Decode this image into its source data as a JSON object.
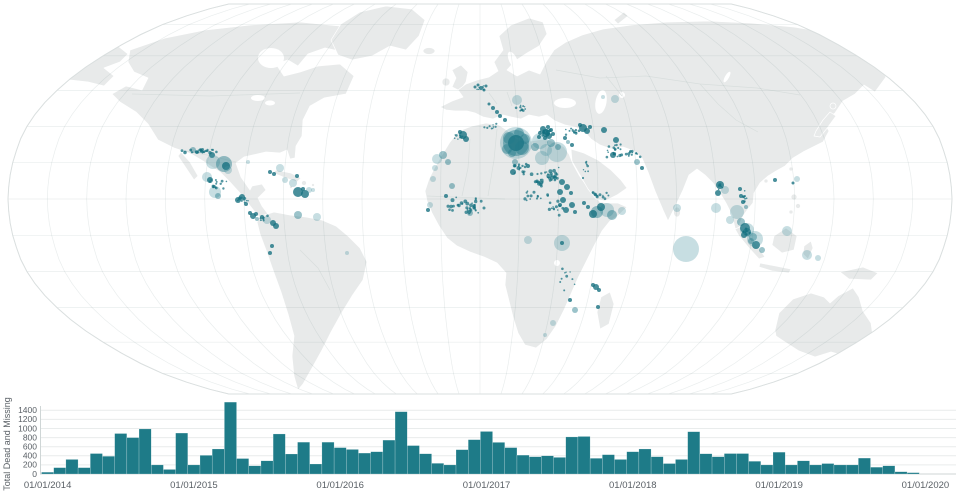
{
  "colors": {
    "background": "#ffffff",
    "land": "#e8eaea",
    "coast": "#ffffff",
    "country_border": "#d8dedd",
    "graticule": "rgba(120,144,144,0.16)",
    "map_outline": "#dadfdf",
    "bar": "#1e7b88",
    "grid_line": "#e9ecec",
    "axis_line": "#cfd6d6",
    "axis_text": "#5a6066",
    "bubble_dark": "#14707f",
    "bubble_mid": "#22798a",
    "bubble_light": "#44919f"
  },
  "map": {
    "bubble_classes": {
      "d": {
        "fill": "#14707f",
        "opacity": 0.78
      },
      "m": {
        "fill": "#22798a",
        "opacity": 0.45
      },
      "l": {
        "fill": "#44919f",
        "opacity": 0.3
      }
    },
    "bubbles": [
      [
        516,
        143,
        16,
        "l"
      ],
      [
        516,
        143,
        13,
        "m"
      ],
      [
        516,
        143,
        8,
        "d"
      ],
      [
        509,
        138,
        6,
        "m"
      ],
      [
        522,
        148,
        7,
        "m"
      ],
      [
        507,
        149,
        5,
        "m"
      ],
      [
        519,
        133,
        5,
        "m"
      ],
      [
        525,
        139,
        5,
        "m"
      ],
      [
        512,
        153,
        4,
        "m"
      ],
      [
        540,
        141,
        8,
        "l"
      ],
      [
        546,
        150,
        6,
        "l"
      ],
      [
        557,
        152,
        10,
        "l"
      ],
      [
        542,
        158,
        7,
        "l"
      ],
      [
        551,
        143,
        4,
        "m"
      ],
      [
        535,
        147,
        4,
        "m"
      ],
      [
        546,
        133,
        4,
        "d"
      ],
      [
        543,
        129,
        3,
        "d"
      ],
      [
        549,
        136,
        3,
        "d"
      ],
      [
        540,
        133,
        2,
        "d"
      ],
      [
        551,
        130,
        2,
        "d"
      ],
      [
        545,
        138,
        2,
        "d"
      ],
      [
        553,
        134,
        2,
        "d"
      ],
      [
        548,
        127,
        2,
        "d"
      ],
      [
        539,
        137,
        2,
        "d"
      ],
      [
        565,
        138,
        2,
        "d"
      ],
      [
        568,
        142,
        2,
        "m"
      ],
      [
        572,
        145,
        2,
        "d"
      ],
      [
        517,
        100,
        5,
        "l"
      ],
      [
        463,
        135,
        4,
        "d"
      ],
      [
        466,
        139,
        3,
        "d"
      ],
      [
        460,
        132,
        2,
        "d"
      ],
      [
        583,
        128,
        4,
        "d"
      ],
      [
        587,
        131,
        3,
        "d"
      ],
      [
        580,
        125,
        2,
        "d"
      ],
      [
        590,
        127,
        2,
        "d"
      ],
      [
        443,
        155,
        4,
        "m"
      ],
      [
        437,
        159,
        5,
        "l"
      ],
      [
        448,
        162,
        3,
        "m"
      ],
      [
        435,
        168,
        3,
        "l"
      ],
      [
        433,
        179,
        3,
        "l"
      ],
      [
        430,
        205,
        3,
        "l"
      ],
      [
        428,
        210,
        2,
        "d"
      ],
      [
        452,
        186,
        3,
        "m"
      ],
      [
        446,
        196,
        2,
        "d"
      ],
      [
        470,
        213,
        3,
        "m"
      ],
      [
        515,
        162,
        3,
        "m"
      ],
      [
        513,
        172,
        3,
        "d"
      ],
      [
        528,
        166,
        2,
        "d"
      ],
      [
        558,
        147,
        3,
        "m"
      ],
      [
        562,
        182,
        3,
        "d"
      ],
      [
        567,
        187,
        3,
        "d"
      ],
      [
        560,
        192,
        3,
        "d"
      ],
      [
        571,
        193,
        2,
        "d"
      ],
      [
        563,
        200,
        3,
        "d"
      ],
      [
        572,
        205,
        3,
        "d"
      ],
      [
        566,
        210,
        3,
        "d"
      ],
      [
        575,
        212,
        2,
        "d"
      ],
      [
        560,
        205,
        2,
        "d"
      ],
      [
        607,
        210,
        7,
        "l"
      ],
      [
        597,
        212,
        6,
        "m"
      ],
      [
        601,
        207,
        4,
        "d"
      ],
      [
        593,
        214,
        4,
        "d"
      ],
      [
        612,
        215,
        5,
        "m"
      ],
      [
        622,
        211,
        4,
        "l"
      ],
      [
        588,
        207,
        2,
        "d"
      ],
      [
        584,
        203,
        2,
        "d"
      ],
      [
        562,
        243,
        8,
        "l"
      ],
      [
        562,
        243,
        2,
        "d"
      ],
      [
        528,
        240,
        4,
        "l"
      ],
      [
        575,
        310,
        3,
        "m"
      ],
      [
        570,
        300,
        2,
        "d"
      ],
      [
        596,
        287,
        3,
        "d"
      ],
      [
        599,
        290,
        2,
        "d"
      ],
      [
        593,
        285,
        2,
        "d"
      ],
      [
        598,
        307,
        2,
        "d"
      ],
      [
        553,
        323,
        3,
        "l"
      ],
      [
        545,
        335,
        2,
        "l"
      ],
      [
        481,
        88,
        2,
        "d"
      ],
      [
        478,
        85,
        1.5,
        "d"
      ],
      [
        484,
        90,
        1.5,
        "d"
      ],
      [
        475,
        87,
        1.5,
        "d"
      ],
      [
        486,
        86,
        1.5,
        "d"
      ],
      [
        497,
        112,
        2,
        "d"
      ],
      [
        500,
        116,
        2,
        "d"
      ],
      [
        493,
        108,
        2,
        "d"
      ],
      [
        505,
        120,
        2,
        "d"
      ],
      [
        489,
        104,
        1.5,
        "d"
      ],
      [
        615,
        99,
        4,
        "l"
      ],
      [
        603,
        97,
        2,
        "l"
      ],
      [
        613,
        155,
        3,
        "d"
      ],
      [
        637,
        162,
        3,
        "m"
      ],
      [
        642,
        168,
        2,
        "d"
      ],
      [
        604,
        130,
        3,
        "d"
      ],
      [
        616,
        140,
        3,
        "d"
      ],
      [
        720,
        185,
        4,
        "d"
      ],
      [
        725,
        190,
        4,
        "l"
      ],
      [
        718,
        193,
        3,
        "d"
      ],
      [
        716,
        208,
        5,
        "l"
      ],
      [
        737,
        212,
        7,
        "l"
      ],
      [
        730,
        220,
        4,
        "l"
      ],
      [
        677,
        208,
        4,
        "l"
      ],
      [
        741,
        222,
        4,
        "m"
      ],
      [
        745,
        228,
        5,
        "d"
      ],
      [
        747,
        232,
        4,
        "d"
      ],
      [
        744,
        235,
        3,
        "d"
      ],
      [
        753,
        237,
        4,
        "m"
      ],
      [
        756,
        245,
        4,
        "d"
      ],
      [
        751,
        241,
        3,
        "m"
      ],
      [
        747,
        230,
        7,
        "l"
      ],
      [
        755,
        239,
        8,
        "l"
      ],
      [
        787,
        231,
        5,
        "l"
      ],
      [
        807,
        255,
        5,
        "l"
      ],
      [
        818,
        258,
        3,
        "l"
      ],
      [
        762,
        250,
        3,
        "m"
      ],
      [
        741,
        196,
        2,
        "d"
      ],
      [
        743,
        202,
        2,
        "d"
      ],
      [
        746,
        207,
        2,
        "m"
      ],
      [
        740,
        189,
        2,
        "d"
      ],
      [
        775,
        180,
        2,
        "d"
      ],
      [
        797,
        179,
        3,
        "l"
      ],
      [
        793,
        183,
        1.5,
        "d"
      ],
      [
        686,
        249,
        13,
        "l"
      ],
      [
        193,
        150,
        3,
        "m"
      ],
      [
        212,
        155,
        3,
        "d"
      ],
      [
        213,
        162,
        7,
        "l"
      ],
      [
        224,
        164,
        8,
        "m"
      ],
      [
        226,
        166,
        4,
        "d"
      ],
      [
        228,
        170,
        4,
        "l"
      ],
      [
        207,
        177,
        5,
        "l"
      ],
      [
        210,
        180,
        3,
        "d"
      ],
      [
        215,
        192,
        6,
        "l"
      ],
      [
        218,
        196,
        3,
        "m"
      ],
      [
        238,
        200,
        3,
        "d"
      ],
      [
        242,
        197,
        3,
        "d"
      ],
      [
        246,
        204,
        2,
        "d"
      ],
      [
        248,
        162,
        2,
        "l"
      ],
      [
        250,
        213,
        2,
        "d"
      ],
      [
        253,
        216,
        3,
        "d"
      ],
      [
        257,
        219,
        2,
        "m"
      ],
      [
        280,
        168,
        4,
        "l"
      ],
      [
        285,
        180,
        3,
        "l"
      ],
      [
        293,
        183,
        4,
        "l"
      ],
      [
        298,
        192,
        5,
        "d"
      ],
      [
        305,
        194,
        4,
        "d"
      ],
      [
        309,
        190,
        3,
        "l"
      ],
      [
        297,
        176,
        2,
        "d"
      ],
      [
        274,
        174,
        2,
        "d"
      ],
      [
        270,
        172,
        2,
        "d"
      ],
      [
        303,
        189,
        2,
        "d"
      ],
      [
        313,
        190,
        2,
        "l"
      ],
      [
        267,
        220,
        4,
        "l"
      ],
      [
        273,
        223,
        3,
        "d"
      ],
      [
        276,
        226,
        3,
        "d"
      ],
      [
        262,
        217,
        2,
        "d"
      ],
      [
        256,
        214,
        2,
        "d"
      ],
      [
        298,
        215,
        4,
        "m"
      ],
      [
        317,
        217,
        4,
        "l"
      ],
      [
        272,
        246,
        2,
        "d"
      ],
      [
        270,
        253,
        2,
        "d"
      ],
      [
        347,
        253,
        2,
        "l"
      ]
    ],
    "dot_clusters": [
      [
        203,
        151,
        24,
        2.5,
        28,
        0.7,
        1.8
      ],
      [
        218,
        183,
        12,
        8,
        14,
        0.7,
        1.6
      ],
      [
        243,
        200,
        6,
        4,
        10,
        0.7,
        1.6
      ],
      [
        465,
        207,
        20,
        13,
        38,
        0.7,
        2.0
      ],
      [
        520,
        168,
        12,
        8,
        18,
        0.7,
        1.8
      ],
      [
        548,
        176,
        16,
        9,
        26,
        0.7,
        2.0
      ],
      [
        540,
        182,
        6,
        5,
        10,
        0.9,
        2.0
      ],
      [
        536,
        196,
        16,
        6,
        14,
        0.7,
        1.6
      ],
      [
        556,
        208,
        12,
        8,
        12,
        0.7,
        1.6
      ],
      [
        545,
        132,
        6,
        4,
        16,
        0.7,
        1.8
      ],
      [
        572,
        131,
        9,
        4,
        12,
        0.7,
        1.6
      ],
      [
        616,
        150,
        16,
        8,
        20,
        0.7,
        1.6
      ],
      [
        600,
        196,
        10,
        5,
        12,
        0.7,
        1.6
      ],
      [
        585,
        170,
        6,
        10,
        8,
        0.7,
        1.4
      ],
      [
        634,
        154,
        10,
        4,
        10,
        0.7,
        1.4
      ],
      [
        522,
        109,
        7,
        4,
        10,
        0.7,
        1.4
      ],
      [
        481,
        88,
        5,
        3,
        7,
        0.6,
        1.2
      ],
      [
        744,
        198,
        3,
        9,
        7,
        0.7,
        1.3
      ],
      [
        567,
        277,
        9,
        14,
        10,
        0.6,
        1.4
      ],
      [
        459,
        137,
        7,
        3,
        8,
        0.6,
        1.3
      ],
      [
        492,
        127,
        9,
        4,
        9,
        0.6,
        1.3
      ],
      [
        263,
        218,
        6,
        3,
        6,
        0.7,
        1.3
      ],
      [
        721,
        187,
        4,
        3,
        6,
        0.7,
        1.4
      ],
      [
        746,
        231,
        4,
        5,
        7,
        0.7,
        1.5
      ]
    ]
  },
  "chart_data": {
    "type": "bar",
    "title": "",
    "xlabel": "",
    "ylabel": "Total Dead and Missing",
    "start_month": "01/2014",
    "months": 72,
    "ylim": [
      0,
      1580
    ],
    "grid": true,
    "y_ticks": [
      0,
      200,
      400,
      600,
      800,
      1000,
      1200,
      1400
    ],
    "x_tick_labels": [
      "01/01/2014",
      "01/01/2015",
      "01/01/2016",
      "01/01/2017",
      "01/01/2018",
      "01/01/2019",
      "01/01/2020"
    ],
    "values": [
      40,
      140,
      320,
      140,
      450,
      390,
      890,
      800,
      990,
      200,
      100,
      900,
      200,
      410,
      550,
      1580,
      340,
      180,
      290,
      880,
      440,
      700,
      220,
      700,
      580,
      540,
      460,
      490,
      745,
      1370,
      625,
      445,
      235,
      200,
      535,
      755,
      935,
      695,
      580,
      415,
      380,
      400,
      365,
      815,
      825,
      345,
      425,
      320,
      490,
      550,
      380,
      230,
      320,
      930,
      445,
      380,
      450,
      450,
      280,
      200,
      480,
      200,
      290,
      200,
      230,
      200,
      200,
      350,
      150,
      180,
      50,
      30
    ]
  },
  "chart": {
    "y_title": "Total Dead and Missing"
  }
}
